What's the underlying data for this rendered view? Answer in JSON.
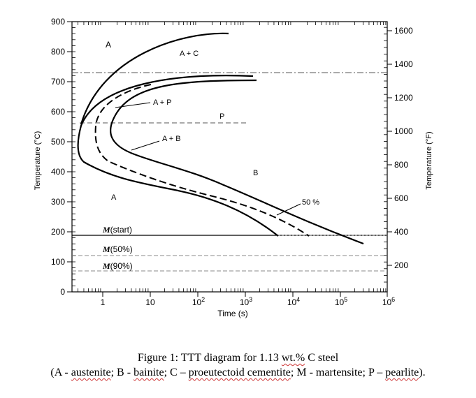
{
  "chart": {
    "xlabel": "Time (s)",
    "ylabel_left": "Temperature (°C)",
    "ylabel_right": "Temperature (°F)",
    "y_ticks_c": [
      "0",
      "100",
      "200",
      "300",
      "400",
      "500",
      "600",
      "700",
      "800",
      "900"
    ],
    "y_ticks_f": [
      "200",
      "400",
      "600",
      "800",
      "1000",
      "1200",
      "1400",
      "1600"
    ],
    "x_ticks": [
      {
        "base": "1",
        "exp": ""
      },
      {
        "base": "10",
        "exp": ""
      },
      {
        "base": "10",
        "exp": "2"
      },
      {
        "base": "10",
        "exp": "3"
      },
      {
        "base": "10",
        "exp": "4"
      },
      {
        "base": "10",
        "exp": "5"
      },
      {
        "base": "10",
        "exp": "6"
      }
    ],
    "regions": {
      "a_top": "A",
      "a_plus_c": "A + C",
      "a_plus_p": "A + P",
      "p": "P",
      "a_plus_b": "A + B",
      "b": "B",
      "a_bottom": "A",
      "fifty": "50 %"
    },
    "martensite": {
      "start": {
        "letter": "M",
        "rest": "(start)"
      },
      "fifty": {
        "letter": "M",
        "rest": "(50%)"
      },
      "ninety": {
        "letter": "M",
        "rest": "(90%)"
      }
    },
    "colors": {
      "line": "#000000",
      "grid": "#999999"
    }
  },
  "caption": {
    "line1_a": "Figure 1: TTT diagram for 1.13 ",
    "line1_wt": "wt.%",
    "line1_b": " C steel",
    "line2_open": "(A - ",
    "line2_austenite": "austenite",
    "line2_b": "; B - ",
    "line2_bainite": "bainite",
    "line2_c": "; C – ",
    "line2_cementite": "proeutectoid cementite",
    "line2_d": "; M - martensite; P – ",
    "line2_pearlite": "pearlite",
    "line2_close": ")."
  }
}
